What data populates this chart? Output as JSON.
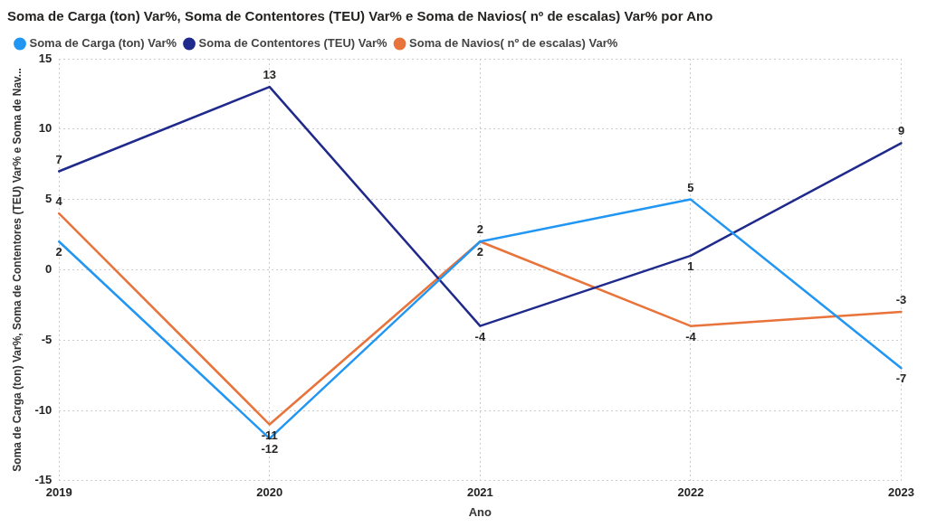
{
  "chart_data": {
    "type": "line",
    "title": "Soma de Carga (ton) Var%, Soma de Contentores (TEU) Var% e Soma de Navios( nº de escalas) Var% por Ano",
    "xlabel": "Ano",
    "ylabel": "Soma de Carga (ton) Var%, Soma de Contentores (TEU) Var% e Soma de Nav...",
    "categories": [
      "2019",
      "2020",
      "2021",
      "2022",
      "2023"
    ],
    "series": [
      {
        "name": "Soma de Carga (ton) Var%",
        "color": "#2196f3",
        "values": [
          2,
          -12,
          2,
          5,
          -7
        ]
      },
      {
        "name": "Soma de Contentores (TEU) Var%",
        "color": "#1f2a8c",
        "values": [
          7,
          13,
          -4,
          1,
          9
        ]
      },
      {
        "name": "Soma de Navios( nº de escalas) Var%",
        "color": "#e8743b",
        "values": [
          4,
          -11,
          2,
          -4,
          -3
        ]
      }
    ],
    "ylim": [
      -15,
      15
    ],
    "yticks": [
      -15,
      -10,
      -5,
      0,
      5,
      10,
      15
    ],
    "grid": true,
    "legend": "top left",
    "marker": "none",
    "line_style": "solid",
    "data_labels": true
  }
}
